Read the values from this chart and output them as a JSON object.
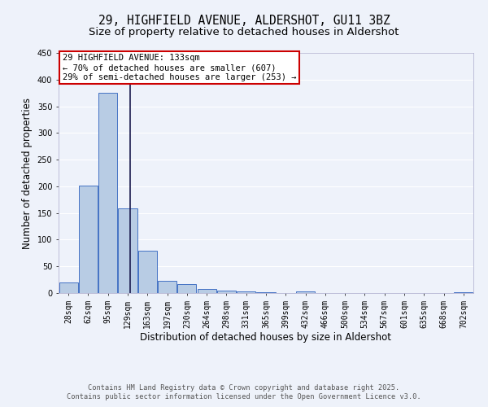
{
  "title": "29, HIGHFIELD AVENUE, ALDERSHOT, GU11 3BZ",
  "subtitle": "Size of property relative to detached houses in Aldershot",
  "xlabel": "Distribution of detached houses by size in Aldershot",
  "ylabel": "Number of detached properties",
  "categories": [
    "28sqm",
    "62sqm",
    "95sqm",
    "129sqm",
    "163sqm",
    "197sqm",
    "230sqm",
    "264sqm",
    "298sqm",
    "331sqm",
    "365sqm",
    "399sqm",
    "432sqm",
    "466sqm",
    "500sqm",
    "534sqm",
    "567sqm",
    "601sqm",
    "635sqm",
    "668sqm",
    "702sqm"
  ],
  "values": [
    20,
    202,
    375,
    158,
    80,
    23,
    17,
    8,
    5,
    3,
    1,
    0,
    3,
    0,
    0,
    0,
    0,
    0,
    0,
    0,
    2
  ],
  "bar_color": "#b8cce4",
  "bar_edge_color": "#4472c4",
  "annotation_text": "29 HIGHFIELD AVENUE: 133sqm\n← 70% of detached houses are smaller (607)\n29% of semi-detached houses are larger (253) →",
  "annotation_box_color": "#ffffff",
  "annotation_box_edge_color": "#cc0000",
  "ylim": [
    0,
    450
  ],
  "yticks": [
    0,
    50,
    100,
    150,
    200,
    250,
    300,
    350,
    400,
    450
  ],
  "background_color": "#eef2fa",
  "grid_color": "#ffffff",
  "footer_line1": "Contains HM Land Registry data © Crown copyright and database right 2025.",
  "footer_line2": "Contains public sector information licensed under the Open Government Licence v3.0.",
  "title_fontsize": 10.5,
  "subtitle_fontsize": 9.5,
  "axis_label_fontsize": 8.5,
  "tick_fontsize": 7,
  "annotation_fontsize": 7.5
}
